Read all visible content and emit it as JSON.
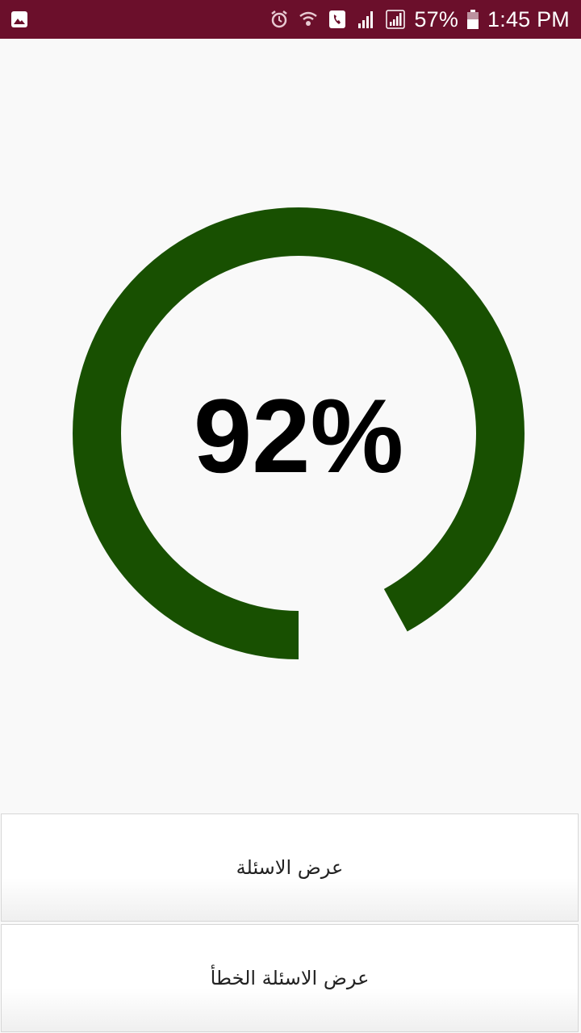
{
  "status_bar": {
    "background": "#6b0f2b",
    "battery_percent_text": "57%",
    "time": "1:45 PM",
    "icons": [
      "image-icon",
      "alarm-icon",
      "wifi-call-icon",
      "phone-icon",
      "signal-icon",
      "signal-icon-2",
      "battery-icon"
    ]
  },
  "score": {
    "percent_text": "92%",
    "percent_value": 0.92,
    "ring_color": "#185001"
  },
  "buttons": {
    "show_questions": "عرض الاسئلة",
    "show_wrong_questions": "عرض الاسئلة الخطأ"
  }
}
